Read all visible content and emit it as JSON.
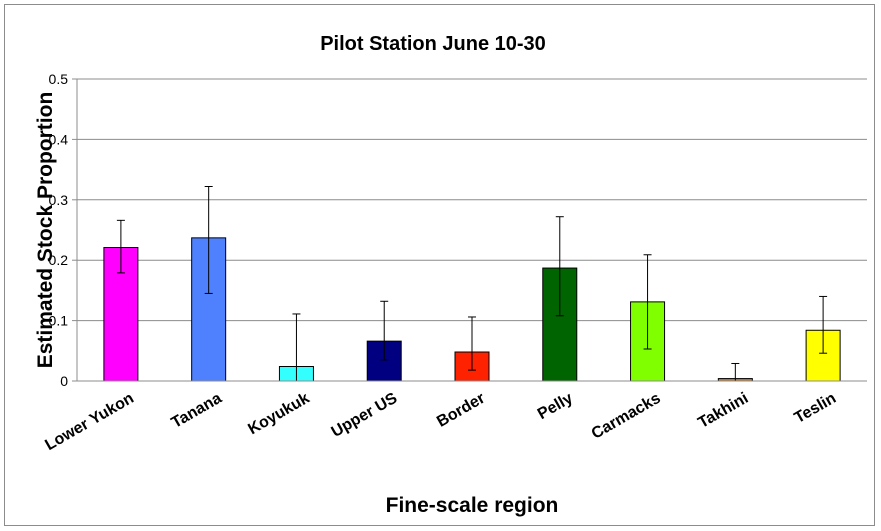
{
  "chart_data": {
    "type": "bar",
    "title": "Pilot Station June 10-30",
    "xlabel": "Fine-scale region",
    "ylabel": "Estimated Stock Proportion",
    "ylim": [
      0,
      0.5
    ],
    "y_ticks": [
      "0",
      "0.1",
      "0.2",
      "0.3",
      "0.4",
      "0.5"
    ],
    "grid": true,
    "legend": "none",
    "categories": [
      "Lower Yukon",
      "Tanana",
      "Koyukuk",
      "Upper US",
      "Border",
      "Pelly",
      "Carmacks",
      "Takhini",
      "Teslin"
    ],
    "values": [
      0.221,
      0.237,
      0.024,
      0.066,
      0.048,
      0.187,
      0.131,
      0.004,
      0.084
    ],
    "error_low": [
      0.179,
      0.145,
      0.0,
      0.035,
      0.018,
      0.108,
      0.053,
      0.0,
      0.046
    ],
    "error_high": [
      0.266,
      0.322,
      0.111,
      0.132,
      0.106,
      0.272,
      0.209,
      0.029,
      0.14
    ],
    "colors": [
      "#ff00ff",
      "#4f81ff",
      "#33ffff",
      "#000080",
      "#ff2200",
      "#006400",
      "#80ff00",
      "#c0803a",
      "#ffff00"
    ]
  }
}
